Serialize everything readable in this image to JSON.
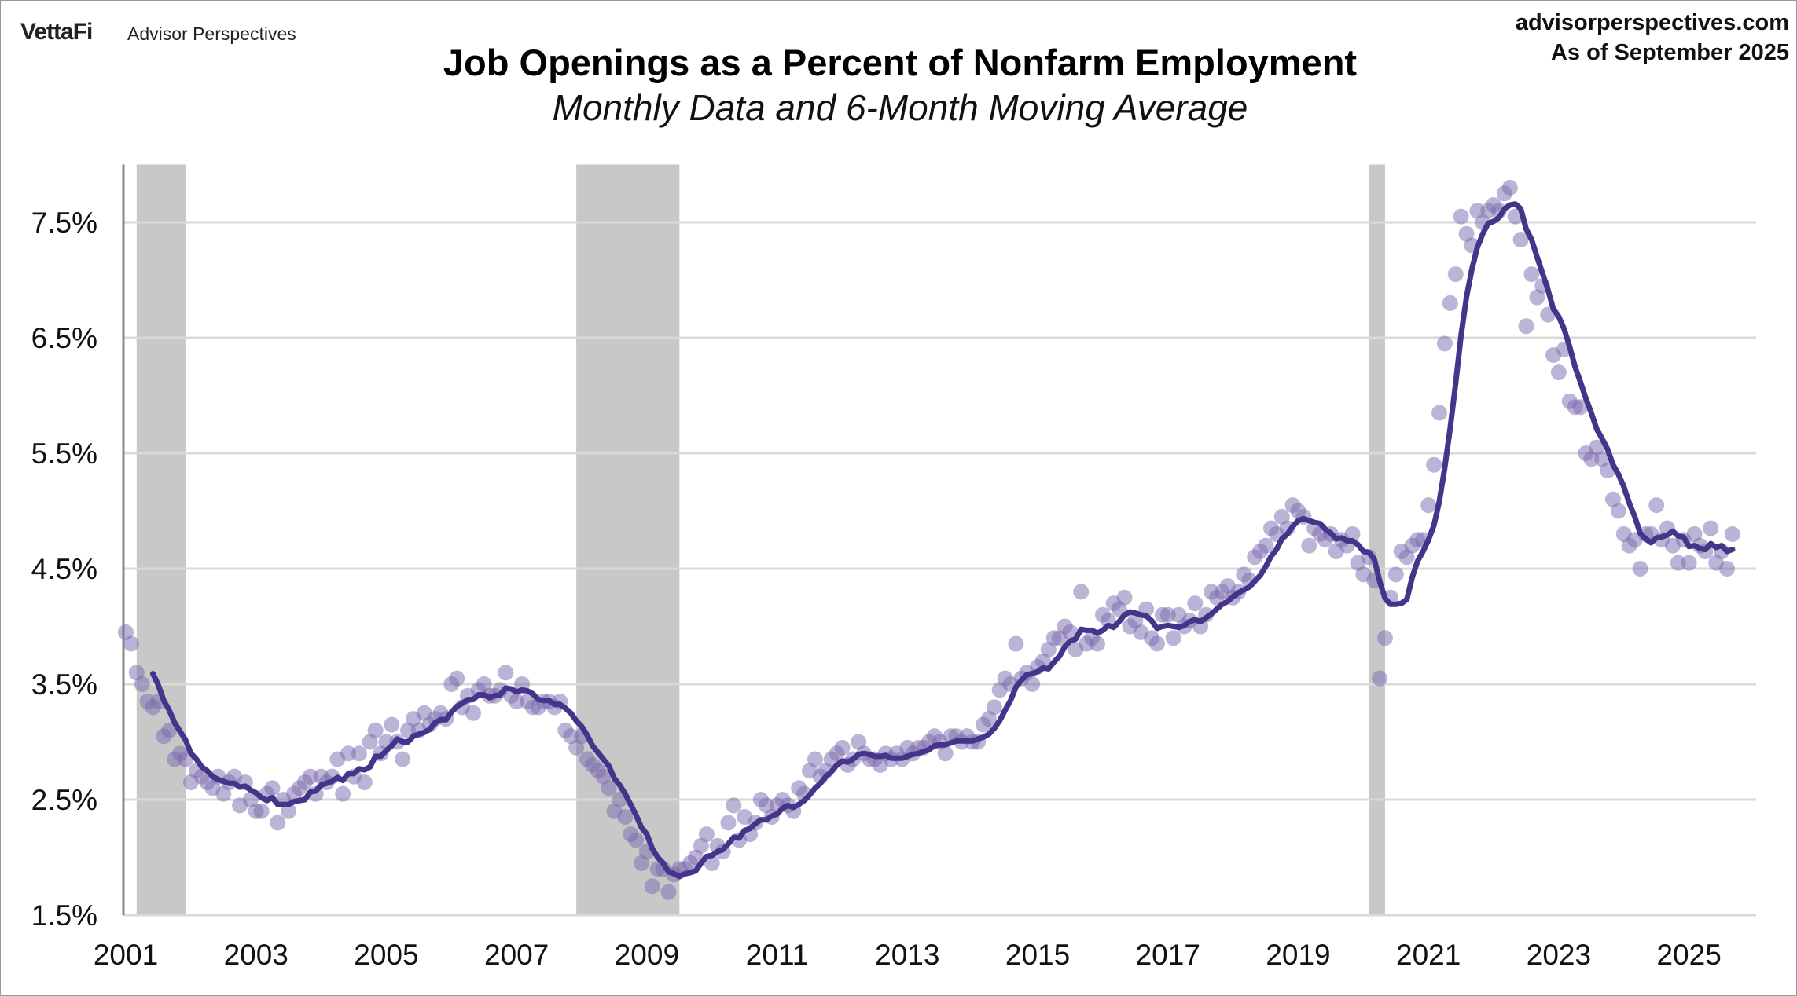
{
  "header": {
    "brand": "VettaFi",
    "brand_sub": "Advisor Perspectives",
    "site": "advisorperspectives.com",
    "as_of": "As of September 2025"
  },
  "chart_data": {
    "type": "scatter+line",
    "title": "Job Openings as a Percent of Nonfarm Employment",
    "subtitle": "Monthly Data and 6-Month Moving Average",
    "xlabel": "",
    "ylabel": "",
    "xlim": [
      2001,
      2025.75
    ],
    "ylim": [
      1.5,
      8.0
    ],
    "y_ticks": [
      "1.5%",
      "2.5%",
      "3.5%",
      "4.5%",
      "5.5%",
      "6.5%",
      "7.5%"
    ],
    "y_tick_values": [
      1.5,
      2.5,
      3.5,
      4.5,
      5.5,
      6.5,
      7.5
    ],
    "x_ticks": [
      "2001",
      "2003",
      "2005",
      "2007",
      "2009",
      "2011",
      "2013",
      "2015",
      "2017",
      "2019",
      "2021",
      "2023",
      "2025"
    ],
    "grid": "horizontal",
    "recessions": [
      [
        "2001-03",
        "2001-11"
      ],
      [
        "2007-12",
        "2009-06"
      ],
      [
        "2020-02",
        "2020-04"
      ]
    ],
    "colors": {
      "dots": "#7a6aad",
      "line": "#45358a",
      "recession": "#c8c8c8",
      "grid": "#d9d9d9"
    },
    "start_month": "2001-01",
    "moving_average_window": 6,
    "monthly": {
      "2001": [
        3.95,
        3.85,
        3.6,
        3.5,
        3.35,
        3.3,
        3.35,
        3.05,
        3.1,
        2.85,
        2.9,
        2.85
      ],
      "2002": [
        2.65,
        2.75,
        2.7,
        2.65,
        2.6,
        2.7,
        2.55,
        2.65,
        2.7,
        2.45,
        2.65,
        2.5
      ],
      "2003": [
        2.4,
        2.4,
        2.55,
        2.6,
        2.3,
        2.5,
        2.4,
        2.55,
        2.6,
        2.65,
        2.7,
        2.55
      ],
      "2004": [
        2.7,
        2.65,
        2.7,
        2.85,
        2.55,
        2.9,
        2.7,
        2.9,
        2.65,
        3.0,
        3.1,
        2.9
      ],
      "2005": [
        3.0,
        3.15,
        3.0,
        2.85,
        3.1,
        3.2,
        3.1,
        3.25,
        3.15,
        3.2,
        3.25,
        3.2
      ],
      "2006": [
        3.5,
        3.55,
        3.3,
        3.4,
        3.25,
        3.45,
        3.5,
        3.4,
        3.4,
        3.45,
        3.6,
        3.4
      ],
      "2007": [
        3.35,
        3.5,
        3.35,
        3.3,
        3.3,
        3.35,
        3.35,
        3.3,
        3.35,
        3.1,
        3.05,
        2.95
      ],
      "2008": [
        3.05,
        2.85,
        2.8,
        2.75,
        2.7,
        2.6,
        2.4,
        2.5,
        2.35,
        2.2,
        2.15,
        1.95
      ],
      "2009": [
        2.05,
        1.75,
        1.9,
        1.9,
        1.7,
        1.85,
        1.9,
        1.9,
        1.95,
        2.0,
        2.1,
        2.2
      ],
      "2010": [
        1.95,
        2.1,
        2.05,
        2.3,
        2.45,
        2.15,
        2.35,
        2.2,
        2.3,
        2.5,
        2.45,
        2.35
      ],
      "2011": [
        2.45,
        2.5,
        2.45,
        2.4,
        2.6,
        2.55,
        2.75,
        2.85,
        2.7,
        2.75,
        2.85,
        2.9
      ],
      "2012": [
        2.95,
        2.8,
        2.85,
        3.0,
        2.9,
        2.85,
        2.85,
        2.8,
        2.9,
        2.85,
        2.9,
        2.85
      ],
      "2013": [
        2.95,
        2.9,
        2.95,
        2.95,
        3.0,
        3.05,
        3.0,
        2.9,
        3.05,
        3.05,
        3.0,
        3.05
      ],
      "2014": [
        3.0,
        3.0,
        3.15,
        3.2,
        3.3,
        3.45,
        3.55,
        3.5,
        3.85,
        3.55,
        3.6,
        3.5
      ],
      "2015": [
        3.65,
        3.7,
        3.8,
        3.9,
        3.9,
        4.0,
        3.95,
        3.8,
        4.3,
        3.85,
        3.9,
        3.85
      ],
      "2016": [
        4.1,
        4.05,
        4.2,
        4.15,
        4.25,
        4.0,
        4.05,
        3.95,
        4.15,
        3.9,
        3.85,
        4.1
      ],
      "2017": [
        4.1,
        3.9,
        4.1,
        4.0,
        4.05,
        4.2,
        4.0,
        4.1,
        4.3,
        4.25,
        4.3,
        4.35
      ],
      "2018": [
        4.25,
        4.3,
        4.45,
        4.4,
        4.6,
        4.65,
        4.7,
        4.85,
        4.8,
        4.95,
        4.85,
        5.05
      ],
      "2019": [
        5.0,
        4.95,
        4.7,
        4.85,
        4.8,
        4.75,
        4.8,
        4.65,
        4.75,
        4.7,
        4.8,
        4.55
      ],
      "2020": [
        4.45,
        4.6,
        4.4,
        3.55,
        3.9,
        4.25,
        4.45,
        4.65,
        4.6,
        4.7,
        4.75,
        4.75
      ],
      "2021": [
        5.05,
        5.4,
        5.85,
        6.45,
        6.8,
        7.05,
        7.55,
        7.4,
        7.3,
        7.6,
        7.5,
        7.6
      ],
      "2022": [
        7.65,
        7.6,
        7.75,
        7.8,
        7.55,
        7.35,
        6.6,
        7.05,
        6.85,
        6.95,
        6.7,
        6.35
      ],
      "2023": [
        6.2,
        6.4,
        5.95,
        5.9,
        5.9,
        5.5,
        5.45,
        5.55,
        5.45,
        5.35,
        5.1,
        5.0
      ],
      "2024": [
        4.8,
        4.7,
        4.75,
        4.5,
        4.8,
        4.8,
        5.05,
        4.75,
        4.85,
        4.7,
        4.55,
        4.75
      ],
      "2025": [
        4.55,
        4.8,
        4.7,
        4.65,
        4.85,
        4.55,
        4.65,
        4.5,
        4.8
      ]
    }
  }
}
